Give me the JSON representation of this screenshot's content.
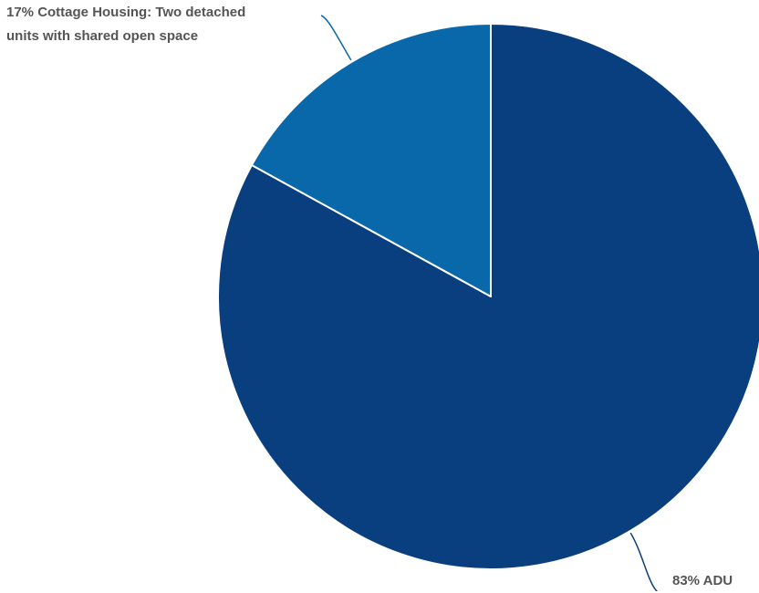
{
  "chart_data": {
    "type": "pie",
    "title": "",
    "start_angle": "12 o'clock, clockwise",
    "slices": [
      {
        "label": "ADU",
        "value": 83,
        "display": "83% ADU",
        "color": "#0a3f7f"
      },
      {
        "label": "Cottage Housing: Two detached units with shared open space",
        "value": 17,
        "display": "17% Cottage Housing: Two detached units with shared open space",
        "color": "#0968aa"
      }
    ],
    "label_color": "#555555",
    "slice_border_color": "#ffffff",
    "legend": "none (labels attached to slices)"
  }
}
